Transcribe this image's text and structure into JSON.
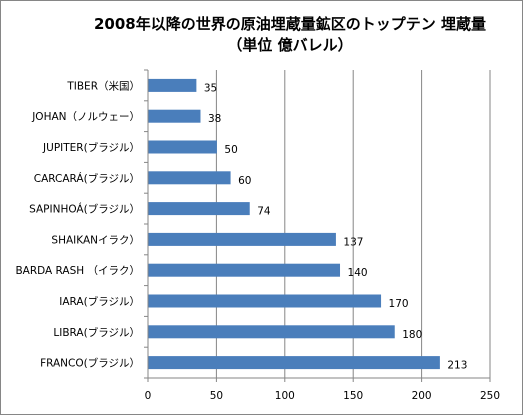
{
  "chart_data": {
    "type": "bar",
    "orientation": "horizontal",
    "title": "2008年以降の世界の原油埋蔵量鉱区のトップテン 埋蔵量",
    "subtitle": "（単位  億バレル）",
    "categories": [
      "TIBER（米国）",
      "JOHAN（ノルウェー）",
      "JUPITER(ブラジル）",
      "CARCARÁ(ブラジル）",
      "SAPINHOÁ(ブラジル）",
      "SHAIKANイラク）",
      "BARDA RASH （イラク）",
      "IARA(ブラジル）",
      "LIBRA(ブラジル）",
      "FRANCO(ブラジル）"
    ],
    "values": [
      35,
      38,
      50,
      60,
      74,
      137,
      140,
      170,
      180,
      213
    ],
    "value_labels": [
      "35",
      "38",
      "50",
      "60",
      "74",
      "137",
      "140",
      "170",
      "180",
      "213"
    ],
    "xlim": [
      0,
      250
    ],
    "xticks": [
      "0",
      "50",
      "100",
      "150",
      "200",
      "250"
    ],
    "grid": "vertical",
    "legend": "none",
    "bar_color": "#4a7ebb",
    "grid_color": "#868686"
  }
}
